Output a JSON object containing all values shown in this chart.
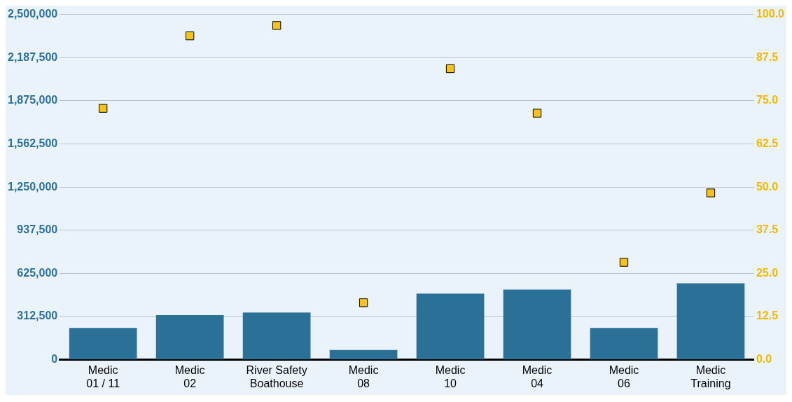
{
  "chart_data": {
    "type": "bar",
    "categories": [
      "Medic 01 / 11",
      "Medic 02",
      "River Safety Boathouse",
      "Medic 08",
      "Medic 10",
      "Medic 04",
      "Medic 06",
      "Medic Training"
    ],
    "series": [
      {
        "color": "#2b7097",
        "values": [
          230000,
          322000,
          342000,
          70000,
          478000,
          508000,
          230000,
          553000
        ]
      },
      {
        "type": "scatter",
        "axis": "y2",
        "color": "#f7c21b",
        "marker": "square",
        "values": [
          72.8,
          93.8,
          96.8,
          16.5,
          84.3,
          71.4,
          28.2,
          48.3
        ]
      }
    ],
    "ylim": [
      0,
      2500000
    ],
    "yticks": [
      {
        "value": 0,
        "label": "0"
      },
      {
        "value": 312500,
        "label": "312,500"
      },
      {
        "value": 625000,
        "label": "625,000"
      },
      {
        "value": 937500,
        "label": "937,500"
      },
      {
        "value": 1250000,
        "label": "1,250,000"
      },
      {
        "value": 1562500,
        "label": "1,562,500"
      },
      {
        "value": 1875000,
        "label": "1,875,000"
      },
      {
        "value": 2187500,
        "label": "2,187,500"
      },
      {
        "value": 2500000,
        "label": "2,500,000"
      }
    ],
    "y2lim": [
      0,
      100
    ],
    "y2ticks": [
      {
        "value": 0,
        "label": "0.0"
      },
      12.5,
      {
        "value": 25,
        "label": "25.0"
      },
      37.5,
      {
        "value": 50,
        "label": "50.0"
      },
      62.5,
      {
        "value": 75,
        "label": "75.0"
      },
      87.5,
      {
        "value": 100,
        "label": "100.0"
      }
    ],
    "grid": "y",
    "legend": false
  }
}
